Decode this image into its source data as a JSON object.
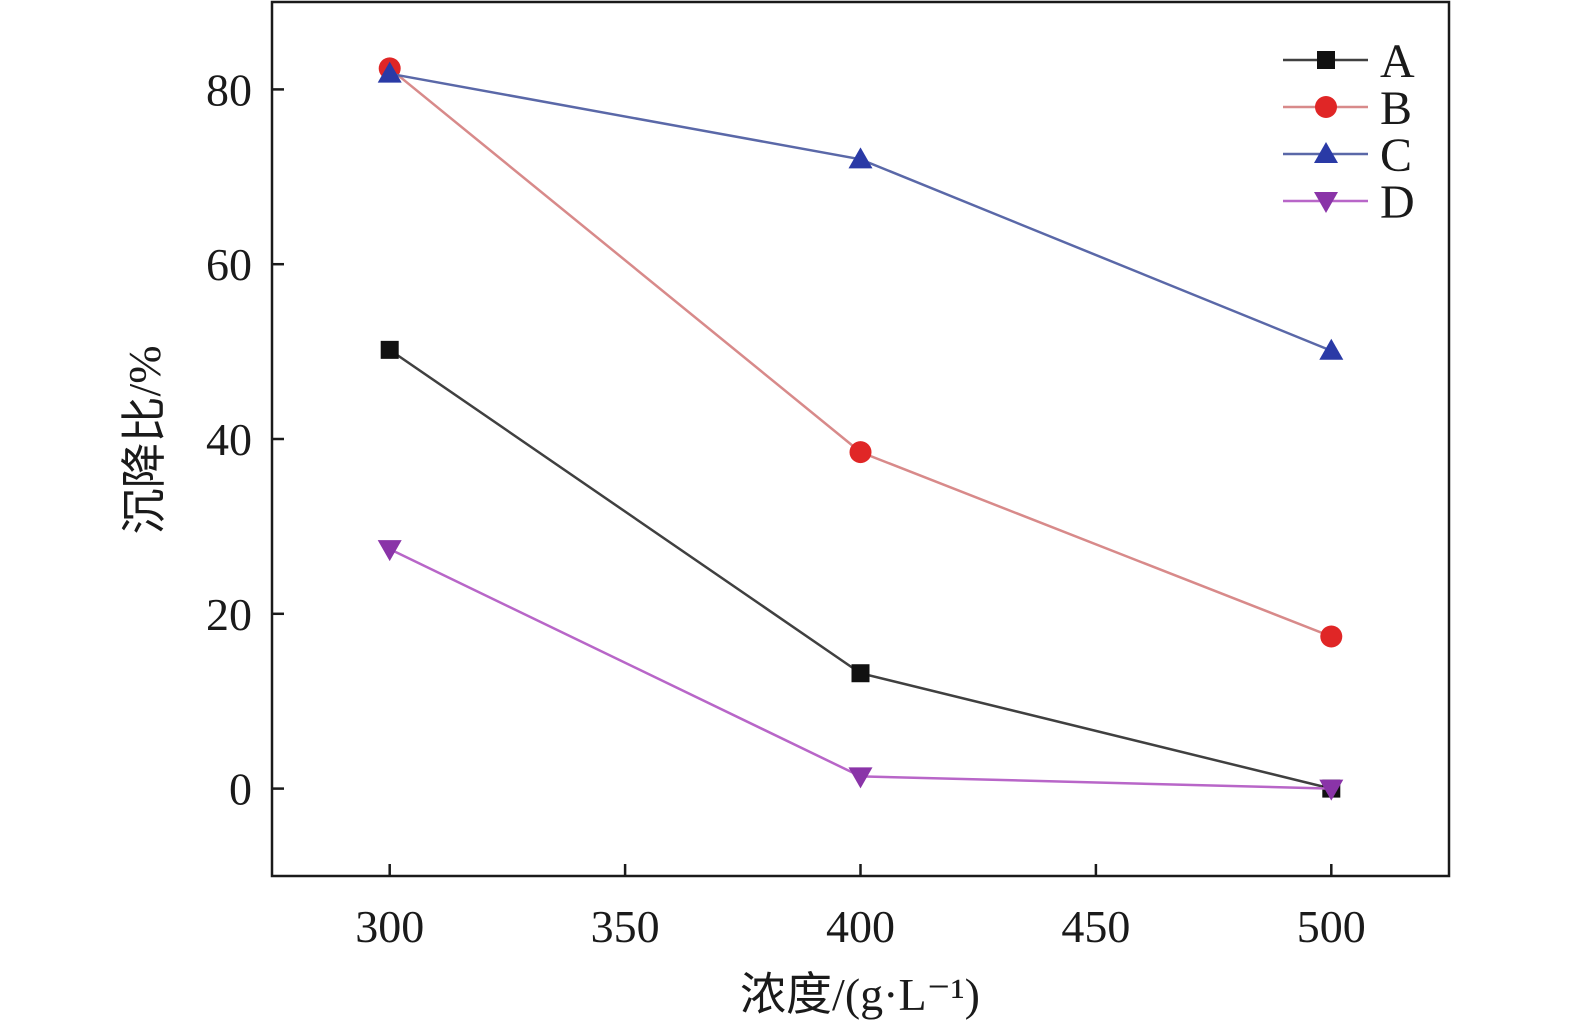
{
  "chart_data": {
    "type": "line",
    "xlabel": "浓度/(g·L⁻¹)",
    "ylabel": "沉降比/%",
    "xlim": [
      275,
      525
    ],
    "ylim": [
      -10,
      90
    ],
    "xticks": [
      300,
      350,
      400,
      450,
      500
    ],
    "yticks": [
      0,
      20,
      40,
      60,
      80
    ],
    "x": [
      300,
      400,
      500
    ],
    "grid": false,
    "legend_position": "top-right",
    "series": [
      {
        "name": "A",
        "values": [
          50.2,
          13.2,
          0
        ],
        "marker": "square",
        "line_color": "#404040",
        "marker_color": "#111111"
      },
      {
        "name": "B",
        "values": [
          82.4,
          38.5,
          17.4
        ],
        "marker": "circle",
        "line_color": "#d88a8a",
        "marker_color": "#e02626"
      },
      {
        "name": "C",
        "values": [
          81.8,
          72.0,
          50.1
        ],
        "marker": "triangle-up",
        "line_color": "#5a68a8",
        "marker_color": "#2a3aa6"
      },
      {
        "name": "D",
        "values": [
          27.4,
          1.4,
          0
        ],
        "marker": "triangle-down",
        "line_color": "#b866c8",
        "marker_color": "#8a34a8"
      }
    ]
  }
}
